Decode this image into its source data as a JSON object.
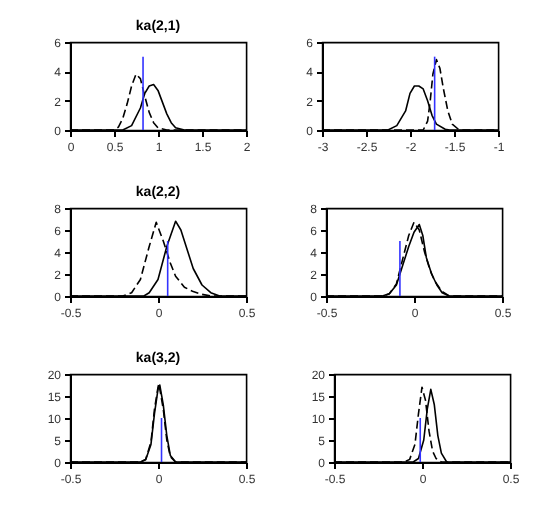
{
  "chart_data": [
    {
      "type": "line",
      "title": "ka(2,1)",
      "xlim": [
        0,
        2
      ],
      "xticks": [
        0,
        0.5,
        1,
        1.5,
        2
      ],
      "ylim": [
        0,
        6
      ],
      "yticks": [
        0,
        2,
        4,
        6
      ],
      "series": [
        {
          "color": "#000000",
          "line_style": "solid",
          "x": [
            0,
            0.6,
            0.7,
            0.8,
            0.85,
            0.9,
            0.95,
            1.0,
            1.05,
            1.1,
            1.15,
            1.2,
            1.3,
            2
          ],
          "values": [
            0,
            0,
            0.3,
            1.5,
            2.5,
            3.0,
            3.1,
            2.7,
            1.9,
            1.1,
            0.5,
            0.15,
            0,
            0
          ]
        },
        {
          "color": "#000000",
          "line_style": "dashed",
          "x": [
            0,
            0.5,
            0.55,
            0.6,
            0.65,
            0.7,
            0.75,
            0.8,
            0.85,
            0.9,
            0.95,
            1.0,
            1.1,
            2
          ],
          "values": [
            0,
            0,
            0.2,
            0.8,
            1.8,
            3.0,
            3.8,
            3.5,
            2.3,
            1.2,
            0.5,
            0.15,
            0,
            0
          ]
        },
        {
          "color": "#3333ff",
          "line_style": "solid",
          "x": [
            0.83,
            0.83
          ],
          "values": [
            0,
            5
          ]
        }
      ]
    },
    {
      "type": "line",
      "xlim": [
        -3,
        -1
      ],
      "xticks": [
        -3,
        -2.5,
        -2,
        -1.5,
        -1
      ],
      "ylim": [
        0,
        6
      ],
      "yticks": [
        0,
        2,
        4,
        6
      ],
      "series": [
        {
          "color": "#000000",
          "line_style": "solid",
          "x": [
            -3,
            -2.25,
            -2.15,
            -2.05,
            -2.0,
            -1.95,
            -1.9,
            -1.85,
            -1.8,
            -1.75,
            -1.7,
            -1.6,
            -1.55,
            -1
          ],
          "values": [
            0,
            0,
            0.3,
            1.3,
            2.5,
            3.0,
            3.0,
            2.8,
            2.0,
            1.0,
            0.4,
            0.05,
            0,
            0
          ]
        },
        {
          "color": "#000000",
          "line_style": "dashed",
          "x": [
            -3,
            -1.85,
            -1.8,
            -1.77,
            -1.74,
            -1.7,
            -1.66,
            -1.62,
            -1.57,
            -1.52,
            -1.45,
            -1.4,
            -1
          ],
          "values": [
            0,
            0,
            0.6,
            2.0,
            3.8,
            4.8,
            4.2,
            2.8,
            1.3,
            0.4,
            0.05,
            0,
            0
          ]
        },
        {
          "color": "#3333ff",
          "line_style": "solid",
          "x": [
            -1.72,
            -1.72
          ],
          "values": [
            0,
            5
          ]
        }
      ]
    },
    {
      "type": "line",
      "title": "ka(2,2)",
      "xlim": [
        -0.5,
        0.5
      ],
      "xticks": [
        -0.5,
        0,
        0.5
      ],
      "ylim": [
        0,
        8
      ],
      "yticks": [
        0,
        2,
        4,
        6,
        8
      ],
      "series": [
        {
          "color": "#000000",
          "line_style": "solid",
          "x": [
            -0.5,
            -0.08,
            -0.05,
            0,
            0.05,
            0.1,
            0.13,
            0.17,
            0.2,
            0.25,
            0.3,
            0.35,
            0.5
          ],
          "values": [
            0,
            0,
            0.3,
            1.5,
            4.5,
            6.8,
            6.0,
            4.0,
            2.5,
            1.0,
            0.3,
            0,
            0
          ]
        },
        {
          "color": "#000000",
          "line_style": "dashed",
          "x": [
            -0.5,
            -0.2,
            -0.15,
            -0.1,
            -0.05,
            -0.01,
            0.03,
            0.07,
            0.1,
            0.15,
            0.2,
            0.25,
            0.3,
            0.5
          ],
          "values": [
            0,
            0,
            0.3,
            1.5,
            4.5,
            6.7,
            5.0,
            3.0,
            1.8,
            0.8,
            0.4,
            0.15,
            0,
            0
          ]
        },
        {
          "color": "#3333ff",
          "line_style": "solid",
          "x": [
            0.055,
            0.055
          ],
          "values": [
            0,
            5
          ]
        }
      ]
    },
    {
      "type": "line",
      "xlim": [
        -0.5,
        0.5
      ],
      "xticks": [
        -0.5,
        0,
        0.5
      ],
      "ylim": [
        0,
        8
      ],
      "yticks": [
        0,
        2,
        4,
        6,
        8
      ],
      "series": [
        {
          "color": "#000000",
          "line_style": "solid",
          "x": [
            -0.5,
            -0.18,
            -0.14,
            -0.1,
            -0.07,
            -0.03,
            0,
            0.03,
            0.05,
            0.07,
            0.1,
            0.13,
            0.16,
            0.2,
            0.5
          ],
          "values": [
            0,
            0,
            0.2,
            1.0,
            2.5,
            4.5,
            5.8,
            6.5,
            5.5,
            3.5,
            2.0,
            1.0,
            0.3,
            0,
            0
          ]
        },
        {
          "color": "#000000",
          "line_style": "dashed",
          "x": [
            -0.5,
            -0.18,
            -0.14,
            -0.1,
            -0.07,
            -0.03,
            0,
            0.03,
            0.06,
            0.09,
            0.12,
            0.16,
            0.2,
            0.5
          ],
          "values": [
            0,
            0,
            0.2,
            1.1,
            3.0,
            5.5,
            6.7,
            6.0,
            4.0,
            2.4,
            1.3,
            0.4,
            0,
            0
          ]
        },
        {
          "color": "#3333ff",
          "line_style": "solid",
          "x": [
            -0.08,
            -0.08
          ],
          "values": [
            0,
            5
          ]
        }
      ]
    },
    {
      "type": "line",
      "title": "ka(3,2)",
      "xlim": [
        -0.5,
        0.5
      ],
      "xticks": [
        -0.5,
        0,
        0.5
      ],
      "ylim": [
        0,
        20
      ],
      "yticks": [
        0,
        5,
        10,
        15,
        20
      ],
      "series": [
        {
          "color": "#000000",
          "line_style": "solid",
          "x": [
            -0.5,
            -0.1,
            -0.07,
            -0.04,
            -0.02,
            0,
            0.01,
            0.03,
            0.05,
            0.07,
            0.1,
            0.5
          ],
          "values": [
            0,
            0,
            0.5,
            4,
            11,
            16.5,
            17.5,
            13,
            6,
            1.5,
            0,
            0
          ]
        },
        {
          "color": "#000000",
          "line_style": "dashed",
          "x": [
            -0.5,
            -0.1,
            -0.07,
            -0.04,
            -0.02,
            0,
            0.005,
            0.03,
            0.05,
            0.07,
            0.1,
            0.5
          ],
          "values": [
            0,
            0,
            0.6,
            4.5,
            12,
            17,
            17.8,
            12,
            5,
            1.2,
            0,
            0
          ]
        },
        {
          "color": "#3333ff",
          "line_style": "solid",
          "x": [
            0.02,
            0.02
          ],
          "values": [
            0,
            10
          ]
        }
      ]
    },
    {
      "type": "line",
      "xlim": [
        -0.5,
        0.5
      ],
      "xticks": [
        -0.5,
        0,
        0.5
      ],
      "ylim": [
        0,
        20
      ],
      "yticks": [
        0,
        5,
        10,
        15,
        20
      ],
      "series": [
        {
          "color": "#000000",
          "line_style": "solid",
          "x": [
            -0.5,
            -0.05,
            -0.02,
            0.01,
            0.03,
            0.05,
            0.07,
            0.09,
            0.11,
            0.14,
            0.5
          ],
          "values": [
            0,
            0,
            0.8,
            5,
            12,
            16.5,
            13,
            6,
            2,
            0,
            0
          ]
        },
        {
          "color": "#000000",
          "line_style": "dashed",
          "x": [
            -0.5,
            -0.1,
            -0.07,
            -0.04,
            -0.02,
            0,
            0.02,
            0.04,
            0.06,
            0.08,
            0.11,
            0.5
          ],
          "values": [
            0,
            0,
            0.6,
            4,
            11,
            17,
            14,
            7,
            2.5,
            0.8,
            0,
            0
          ]
        },
        {
          "color": "#3333ff",
          "line_style": "solid",
          "x": [
            -0.01,
            -0.01
          ],
          "values": [
            0,
            10
          ]
        }
      ]
    }
  ]
}
